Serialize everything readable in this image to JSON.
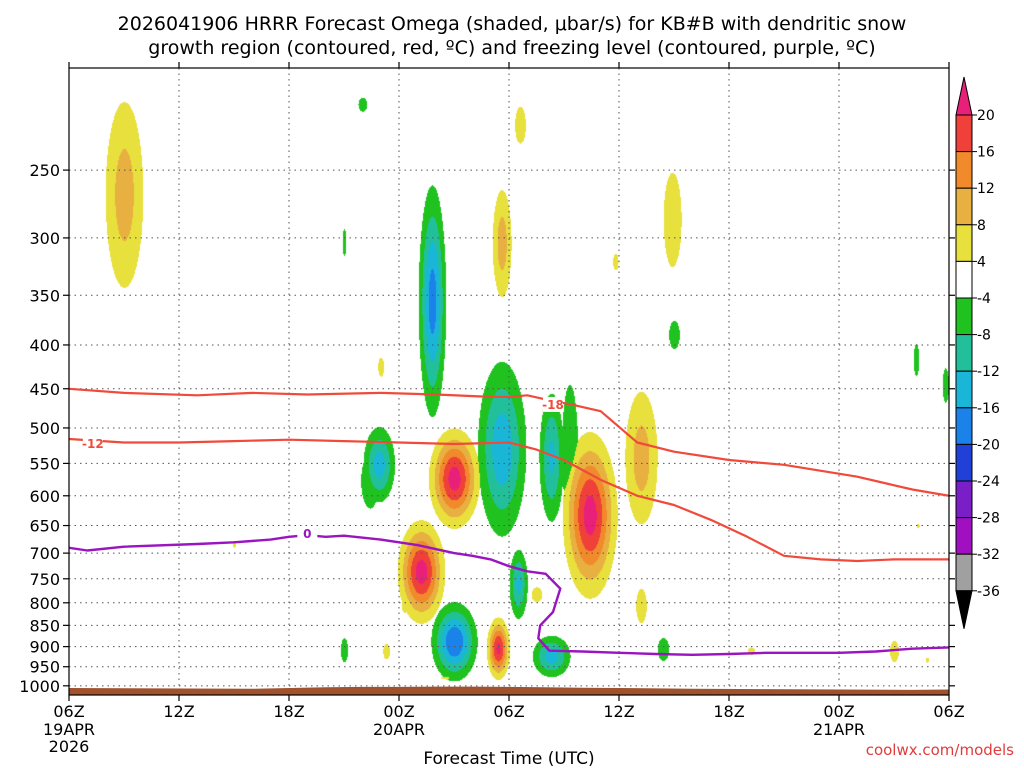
{
  "title": {
    "line1": "2026041906 HRRR Forecast Omega (shaded, μbar/s) for KB#B with dendritic snow",
    "line2": "growth region (contoured, red, ºC) and freezing level (contoured, purple, ºC)"
  },
  "credit": "coolwx.com/models",
  "chart_data": {
    "type": "heatmap",
    "xlabel": "Forecast Time (UTC)",
    "ylabel": "",
    "x_unit": "hours since 2026-04-19 06Z",
    "xlim": [
      0,
      48
    ],
    "ylim": [
      1025,
      190
    ],
    "x_ticks": [
      {
        "hour": 0,
        "label": "06Z",
        "sub": [
          "19APR",
          "2026"
        ]
      },
      {
        "hour": 6,
        "label": "12Z",
        "sub": []
      },
      {
        "hour": 12,
        "label": "18Z",
        "sub": []
      },
      {
        "hour": 18,
        "label": "00Z",
        "sub": [
          "20APR"
        ]
      },
      {
        "hour": 24,
        "label": "06Z",
        "sub": []
      },
      {
        "hour": 30,
        "label": "12Z",
        "sub": []
      },
      {
        "hour": 36,
        "label": "18Z",
        "sub": []
      },
      {
        "hour": 42,
        "label": "00Z",
        "sub": [
          "21APR"
        ]
      },
      {
        "hour": 48,
        "label": "06Z",
        "sub": []
      }
    ],
    "y_ticks": [
      250,
      300,
      350,
      400,
      450,
      500,
      550,
      600,
      650,
      700,
      750,
      800,
      850,
      900,
      950,
      1000
    ],
    "grid": true,
    "colorbar": {
      "unit": "μbar/s",
      "labels": [
        "20",
        "16",
        "12",
        "8",
        "4",
        "-4",
        "-8",
        "-12",
        "-16",
        "-20",
        "-24",
        "-28",
        "-32",
        "-36"
      ],
      "bins": [
        {
          "min": 20,
          "max": null,
          "color": "#e8207a"
        },
        {
          "min": 16,
          "max": 20,
          "color": "#f0403a"
        },
        {
          "min": 12,
          "max": 16,
          "color": "#f08a2a"
        },
        {
          "min": 8,
          "max": 12,
          "color": "#e8b040"
        },
        {
          "min": 4,
          "max": 8,
          "color": "#e8e03c"
        },
        {
          "min": -4,
          "max": 4,
          "color": "#ffffff"
        },
        {
          "min": -8,
          "max": -4,
          "color": "#1fc21f"
        },
        {
          "min": -12,
          "max": -8,
          "color": "#22c09a"
        },
        {
          "min": -16,
          "max": -12,
          "color": "#1ab6d8"
        },
        {
          "min": -20,
          "max": -16,
          "color": "#1a82e8"
        },
        {
          "min": -24,
          "max": -20,
          "color": "#2040d8"
        },
        {
          "min": -28,
          "max": -24,
          "color": "#7a1fc8"
        },
        {
          "min": -32,
          "max": -28,
          "color": "#a010c0"
        },
        {
          "min": -36,
          "max": -32,
          "color": "#a0a0a0"
        },
        {
          "min": null,
          "max": -36,
          "color": "#000000"
        }
      ]
    },
    "omega_regions": [
      {
        "t": 3.0,
        "p": [
          190,
          375
        ],
        "w": 2.8,
        "peak": 10
      },
      {
        "t": 9.0,
        "p": [
          665,
          700
        ],
        "w": 0.6,
        "peak": 5
      },
      {
        "t": 15.0,
        "p": [
          275,
          335
        ],
        "w": 0.6,
        "peak": -5
      },
      {
        "t": 15.0,
        "p": [
          850,
          970
        ],
        "w": 0.8,
        "peak": -6
      },
      {
        "t": 17.3,
        "p": [
          860,
          965
        ],
        "w": 1.0,
        "peak": 5
      },
      {
        "t": 16.4,
        "p": [
          495,
          670
        ],
        "w": 2.0,
        "peak": -6
      },
      {
        "t": 19.8,
        "p": [
          255,
          495
        ],
        "w": 1.6,
        "peak": -18
      },
      {
        "t": 16.0,
        "p": [
          195,
          225
        ],
        "w": 1.8,
        "peak": -4.5
      },
      {
        "t": 17.0,
        "p": [
          395,
          455
        ],
        "w": 0.9,
        "peak": 5
      },
      {
        "t": 16.9,
        "p": [
          490,
          620
        ],
        "w": 2.0,
        "peak": -14
      },
      {
        "t": 19.2,
        "p": [
          640,
          845
        ],
        "w": 2.6,
        "peak": 22
      },
      {
        "t": 18.3,
        "p": [
          770,
          840
        ],
        "w": 0.7,
        "peak": 6
      },
      {
        "t": 21.0,
        "p": [
          500,
          655
        ],
        "w": 2.8,
        "peak": 22
      },
      {
        "t": 21.0,
        "p": [
          795,
          990
        ],
        "w": 2.6,
        "peak": -20
      },
      {
        "t": 20.6,
        "p": [
          965,
          990
        ],
        "w": 1.8,
        "peak": 5
      },
      {
        "t": 24.6,
        "p": [
          200,
          245
        ],
        "w": 1.2,
        "peak": 6
      },
      {
        "t": 23.6,
        "p": [
          250,
          370
        ],
        "w": 1.4,
        "peak": 10
      },
      {
        "t": 23.6,
        "p": [
          405,
          690
        ],
        "w": 3.0,
        "peak": -15
      },
      {
        "t": 24.5,
        "p": [
          680,
          850
        ],
        "w": 1.2,
        "peak": -13
      },
      {
        "t": 23.4,
        "p": [
          830,
          985
        ],
        "w": 1.3,
        "peak": 21
      },
      {
        "t": 25.5,
        "p": [
          755,
          810
        ],
        "w": 1.0,
        "peak": 7
      },
      {
        "t": 23.7,
        "p": [
          855,
          915
        ],
        "w": 0.7,
        "peak": 6
      },
      {
        "t": 26.3,
        "p": [
          440,
          665
        ],
        "w": 1.6,
        "peak": -13
      },
      {
        "t": 26.3,
        "p": [
          865,
          985
        ],
        "w": 2.4,
        "peak": -14
      },
      {
        "t": 27.3,
        "p": [
          370,
          760
        ],
        "w": 1.8,
        "peak": -6
      },
      {
        "t": 28.4,
        "p": [
          505,
          790
        ],
        "w": 3.0,
        "peak": 22
      },
      {
        "t": 31.2,
        "p": [
          425,
          690
        ],
        "w": 2.4,
        "peak": 10
      },
      {
        "t": 31.2,
        "p": [
          710,
          915
        ],
        "w": 1.6,
        "peak": 5
      },
      {
        "t": 32.4,
        "p": [
          850,
          965
        ],
        "w": 1.3,
        "peak": -6
      },
      {
        "t": 32.9,
        "p": [
          220,
          370
        ],
        "w": 2.0,
        "peak": 6
      },
      {
        "t": 33.0,
        "p": [
          360,
          420
        ],
        "w": 1.2,
        "peak": -6
      },
      {
        "t": 29.8,
        "p": [
          305,
          335
        ],
        "w": 0.6,
        "peak": 6
      },
      {
        "t": 37.2,
        "p": [
          885,
          935
        ],
        "w": 1.2,
        "peak": 5
      },
      {
        "t": 46.2,
        "p": [
          380,
          455
        ],
        "w": 0.6,
        "peak": -6
      },
      {
        "t": 47.8,
        "p": [
          405,
          490
        ],
        "w": 0.7,
        "peak": -6
      },
      {
        "t": 46.3,
        "p": [
          640,
          660
        ],
        "w": 0.4,
        "peak": 5
      },
      {
        "t": 45.0,
        "p": [
          860,
          965
        ],
        "w": 1.0,
        "peak": 6
      },
      {
        "t": 46.8,
        "p": [
          915,
          950
        ],
        "w": 0.6,
        "peak": 5
      }
    ],
    "contours": [
      {
        "level": "-18",
        "color": "#f04a3a",
        "label_at": {
          "t": 26.4,
          "p": 470
        },
        "width": 2.2,
        "t": [
          0,
          3,
          7,
          10,
          13,
          17,
          20,
          23,
          24,
          25,
          26,
          27.5,
          29,
          31,
          33,
          36,
          39,
          43,
          46,
          48
        ],
        "p": [
          450,
          455,
          458,
          455,
          457,
          455,
          457,
          460,
          460,
          458,
          463,
          470,
          478,
          520,
          533,
          545,
          552,
          570,
          590,
          600
        ]
      },
      {
        "level": "-12",
        "color": "#f04a3a",
        "label_at": {
          "t": 1.3,
          "p": 522
        },
        "width": 2.2,
        "t": [
          0,
          3,
          6,
          9,
          12,
          15,
          18,
          21,
          24,
          25.5,
          27,
          29,
          31,
          33,
          35,
          37,
          39,
          41,
          43,
          45,
          48
        ],
        "p": [
          515,
          520,
          520,
          518,
          516,
          518,
          520,
          522,
          520,
          530,
          545,
          575,
          600,
          615,
          640,
          670,
          705,
          712,
          715,
          712,
          712
        ]
      },
      {
        "level": "0",
        "color": "#9a14c0",
        "label_at": {
          "t": 13.0,
          "p": 665
        },
        "width": 2.4,
        "t": [
          0,
          1,
          3,
          7,
          9,
          11,
          12,
          13,
          14,
          15,
          17,
          19,
          21,
          22,
          23,
          24,
          25,
          26,
          26.8,
          26.4,
          25.7,
          25.6,
          26.2,
          28,
          30,
          32,
          34,
          36,
          38,
          40,
          42,
          44,
          46,
          48
        ],
        "p": [
          690,
          695,
          688,
          683,
          680,
          675,
          670,
          667,
          670,
          668,
          675,
          685,
          700,
          705,
          712,
          725,
          735,
          740,
          770,
          820,
          850,
          880,
          910,
          912,
          915,
          918,
          920,
          918,
          915,
          915,
          915,
          912,
          905,
          902
        ]
      }
    ],
    "terrain": {
      "color": "#a0522d",
      "t": [
        0,
        10,
        14,
        16,
        18,
        20,
        22,
        24,
        26,
        28,
        30,
        34,
        38,
        42,
        46,
        48
      ],
      "p": [
        1006,
        1008,
        1004,
        1003,
        1003,
        1002,
        1002,
        1003,
        1004,
        1005,
        1006,
        1008,
        1009,
        1010,
        1011,
        1010
      ]
    }
  }
}
